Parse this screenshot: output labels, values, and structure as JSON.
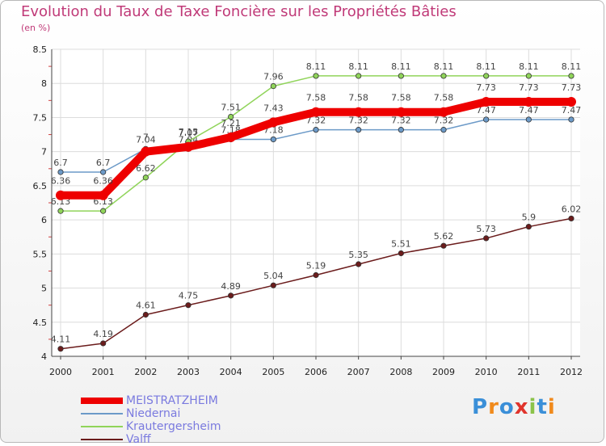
{
  "title": "Evolution du Taux de Taxe Foncière sur les Propriétés Bâties",
  "subtitle": "(en %)",
  "logo_text": "Proxiti",
  "chart_data": {
    "type": "line",
    "title": "Evolution du Taux de Taxe Foncière sur les Propriétés Bâties",
    "ylabel": "(en %)",
    "xlabel": "",
    "ylim": [
      4,
      8.5
    ],
    "yticks": [
      "4",
      "4.5",
      "5",
      "5.5",
      "6",
      "6.5",
      "7",
      "7.5",
      "8",
      "8.5"
    ],
    "x": [
      "2000",
      "2001",
      "2002",
      "2003",
      "2004",
      "2005",
      "2006",
      "2007",
      "2008",
      "2009",
      "2010",
      "2011",
      "2012"
    ],
    "series": [
      {
        "name": "Niedernai",
        "color": "#6c9ac8",
        "values": [
          6.7,
          6.7,
          7.04,
          7.04,
          7.18,
          7.18,
          7.32,
          7.32,
          7.32,
          7.32,
          7.47,
          7.47,
          7.47
        ],
        "labels": [
          "6.7",
          "6.7",
          "7.04",
          "7.04",
          "7.18",
          "7.18",
          "7.32",
          "7.32",
          "7.32",
          "7.32",
          "7.47",
          "7.47",
          "7.47"
        ]
      },
      {
        "name": "Krautergersheim",
        "color": "#90d45a",
        "values": [
          6.13,
          6.13,
          6.62,
          7.15,
          7.51,
          7.96,
          8.11,
          8.11,
          8.11,
          8.11,
          8.11,
          8.11,
          8.11
        ],
        "labels": [
          "6.13",
          "6.13",
          "6.62",
          "7.15",
          "7.51",
          "7.96",
          "8.11",
          "8.11",
          "8.11",
          "8.11",
          "8.11",
          "8.11",
          "8.11"
        ]
      },
      {
        "name": "Valff",
        "color": "#6b1c1c",
        "values": [
          4.11,
          4.19,
          4.61,
          4.75,
          4.89,
          5.04,
          5.19,
          5.35,
          5.51,
          5.62,
          5.73,
          5.9,
          6.02
        ],
        "labels": [
          "4.11",
          "4.19",
          "4.61",
          "4.75",
          "4.89",
          "5.04",
          "5.19",
          "5.35",
          "5.51",
          "5.62",
          "5.73",
          "5.9",
          "6.02"
        ]
      },
      {
        "name": "MEISTRATZHEIM",
        "color": "#ee0000",
        "values": [
          6.36,
          6.36,
          7.0,
          7.07,
          7.21,
          7.43,
          7.58,
          7.58,
          7.58,
          7.58,
          7.73,
          7.73,
          7.73
        ],
        "labels": [
          "6.36",
          "6.36",
          "7",
          "7.07",
          "7.21",
          "7.43",
          "7.58",
          "7.58",
          "7.58",
          "7.58",
          "7.73",
          "7.73",
          "7.73"
        ]
      }
    ],
    "legend": [
      "MEISTRATZHEIM",
      "Niedernai",
      "Krautergersheim",
      "Valff"
    ],
    "legend_colors": [
      "#ee0000",
      "#6c9ac8",
      "#90d45a",
      "#6b1c1c"
    ]
  }
}
